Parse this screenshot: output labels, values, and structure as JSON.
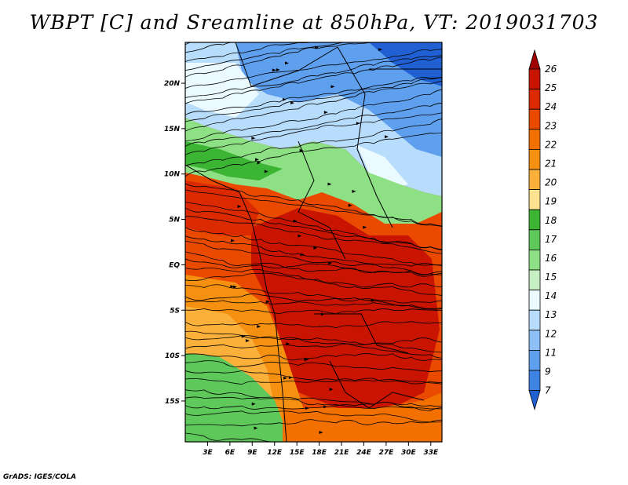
{
  "title": "WBPT [C] and Sreamline at 850hPa, VT: 2019031703",
  "footer": "GrADS: IGES/COLA",
  "map": {
    "lat_labels": [
      "20N",
      "15N",
      "10N",
      "5N",
      "EQ",
      "5S",
      "10S",
      "15S"
    ],
    "lon_labels": [
      "3E",
      "6E",
      "9E",
      "12E",
      "15E",
      "18E",
      "21E",
      "24E",
      "27E",
      "30E",
      "33E"
    ],
    "lon_range": [
      0,
      34.5
    ],
    "lat_range": [
      -19.5,
      24.5
    ]
  },
  "colorbar": {
    "levels": [
      "26",
      "25",
      "24",
      "23",
      "22",
      "21",
      "20",
      "19",
      "18",
      "17",
      "16",
      "15",
      "14",
      "13",
      "12",
      "11",
      "9",
      "7"
    ],
    "colors": {
      "c26": "#a00000",
      "c25": "#c81400",
      "c24": "#dc2a00",
      "c23": "#ea4a00",
      "c22": "#f27000",
      "c21": "#f69010",
      "c20": "#fab03a",
      "c19": "#fde38f",
      "c18": "#3cb434",
      "c17": "#5ec85a",
      "c16": "#8ee084",
      "c15": "#c6f0c4",
      "c14": "#eafaff",
      "c13": "#b8dcfc",
      "c12": "#8cc0f6",
      "c11": "#5fa0ee",
      "c9": "#3e82e2",
      "c7": "#2060d2"
    }
  }
}
